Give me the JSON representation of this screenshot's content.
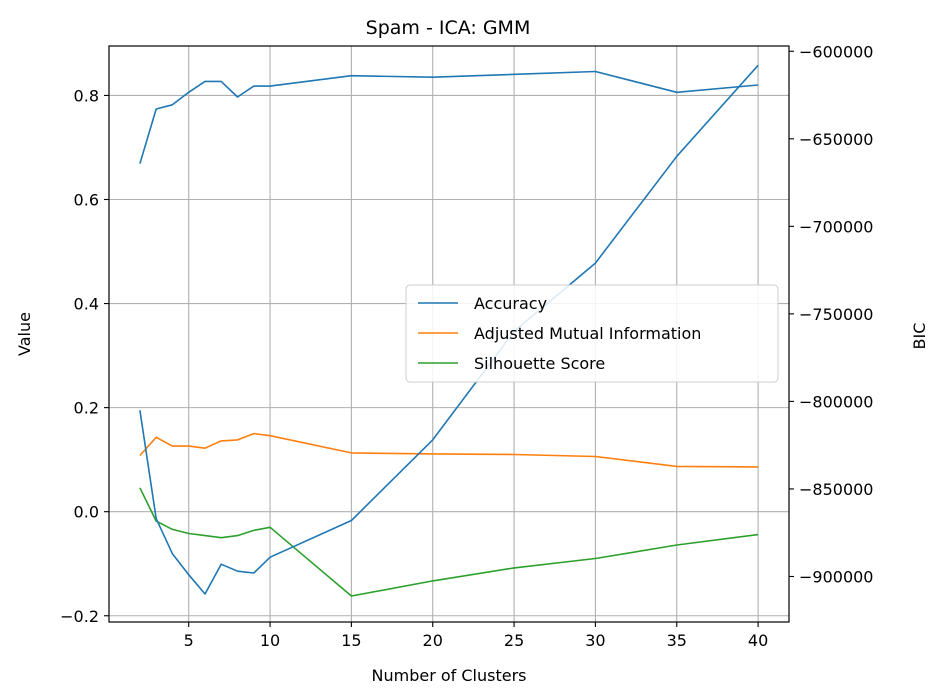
{
  "chart_data": {
    "type": "line",
    "title": "Spam - ICA: GMM",
    "xlabel": "Number of Clusters",
    "ylabel": "Value",
    "y2label": "BIC",
    "x_ticks": [
      5,
      10,
      15,
      20,
      25,
      30,
      35,
      40
    ],
    "y_ticks": [
      -0.2,
      0.0,
      0.2,
      0.4,
      0.6,
      0.8
    ],
    "y_tick_labels": [
      "−0.2",
      "0.0",
      "0.2",
      "0.4",
      "0.6",
      "0.8"
    ],
    "y2_ticks": [
      -600000,
      -650000,
      -700000,
      -750000,
      -800000,
      -850000,
      -900000
    ],
    "y2_tick_labels": [
      "−600000",
      "−650000",
      "−700000",
      "−750000",
      "−800000",
      "−850000",
      "−900000"
    ],
    "xlim": [
      0.1,
      41.9
    ],
    "ylim": [
      -0.212,
      0.895
    ],
    "y2lim": [
      -926000,
      -597000
    ],
    "grid": true,
    "legend_position": "center-right",
    "series": [
      {
        "name": "Accuracy",
        "axis": "left",
        "color": "#1f77b4",
        "x": [
          2,
          3,
          4,
          5,
          6,
          7,
          8,
          9,
          10,
          15,
          20,
          30,
          35,
          40
        ],
        "y": [
          0.669,
          0.774,
          0.782,
          0.806,
          0.827,
          0.827,
          0.797,
          0.818,
          0.818,
          0.838,
          0.835,
          0.846,
          0.806,
          0.82
        ]
      },
      {
        "name": "Adjusted Mutual Information",
        "axis": "left",
        "color": "#ff7f0e",
        "x": [
          2,
          3,
          4,
          5,
          6,
          7,
          8,
          9,
          10,
          15,
          20,
          25,
          30,
          35,
          40
        ],
        "y": [
          0.108,
          0.143,
          0.126,
          0.126,
          0.122,
          0.136,
          0.138,
          0.15,
          0.146,
          0.113,
          0.111,
          0.11,
          0.106,
          0.087,
          0.086
        ]
      },
      {
        "name": "Silhouette Score",
        "axis": "left",
        "color": "#2ca02c",
        "x": [
          2,
          3,
          4,
          5,
          6,
          7,
          8,
          9,
          10,
          15,
          20,
          25,
          30,
          35,
          40
        ],
        "y": [
          0.046,
          -0.018,
          -0.034,
          -0.042,
          -0.046,
          -0.05,
          -0.046,
          -0.036,
          -0.03,
          -0.162,
          -0.133,
          -0.108,
          -0.09,
          -0.064,
          -0.044
        ]
      },
      {
        "name": "BIC",
        "axis": "right",
        "color": "#1f77b4",
        "x": [
          2,
          3,
          4,
          5,
          6,
          7,
          8,
          9,
          10,
          15,
          20,
          25,
          30,
          35,
          40
        ],
        "y": [
          -805000,
          -867000,
          -887000,
          -899000,
          -910000,
          -893000,
          -897000,
          -898000,
          -889000,
          -868000,
          -822000,
          -760000,
          -721000,
          -660000,
          -608000
        ]
      }
    ]
  }
}
